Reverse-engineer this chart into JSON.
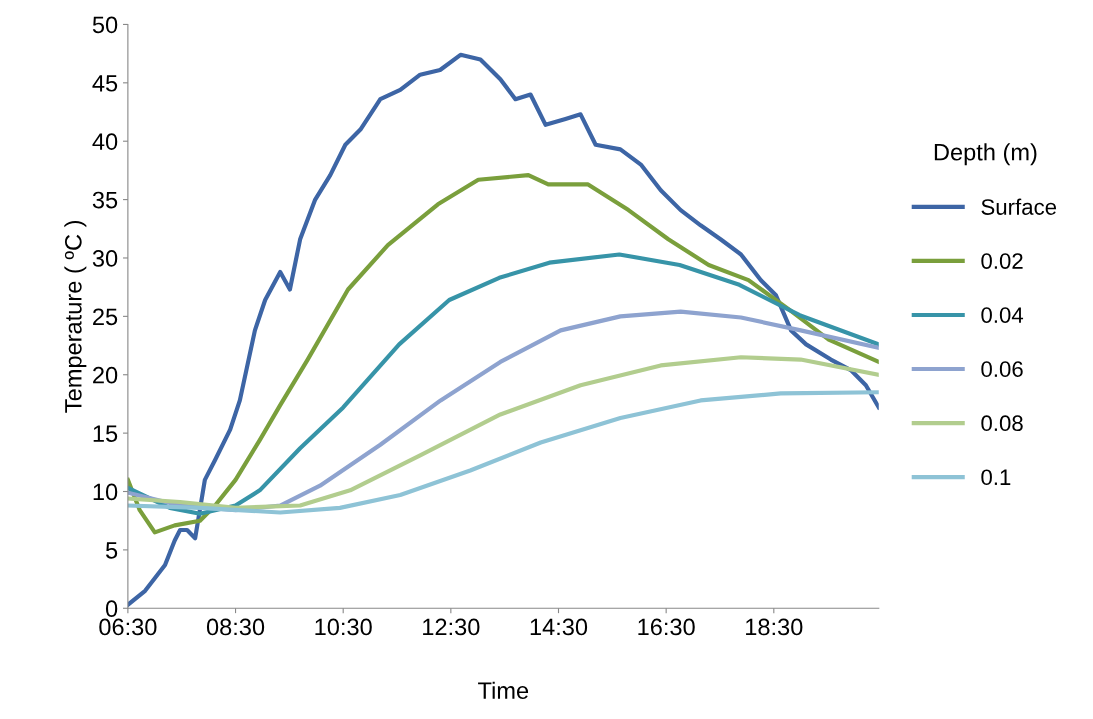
{
  "chart_data": {
    "type": "line",
    "xlabel": "Time",
    "ylabel": "Temperature ( ºC )",
    "legend_title": "Depth (m)",
    "legend": "right",
    "grid": false,
    "marker": "none",
    "line_style": "solid",
    "xlim": [
      6.5,
      20.45
    ],
    "xticks": [
      {
        "value": 6.5,
        "label": "06:30"
      },
      {
        "value": 8.5,
        "label": "08:30"
      },
      {
        "value": 10.5,
        "label": "10:30"
      },
      {
        "value": 12.5,
        "label": "12:30"
      },
      {
        "value": 14.5,
        "label": "14:30"
      },
      {
        "value": 16.5,
        "label": "16:30"
      },
      {
        "value": 18.5,
        "label": "18:30"
      }
    ],
    "ylim": [
      0,
      50
    ],
    "yticks": [
      0,
      5,
      10,
      15,
      20,
      25,
      30,
      35,
      40,
      45,
      50
    ],
    "series": [
      {
        "name": "Surface",
        "color": "#3d65a5",
        "x": [
          6.5,
          6.82,
          7.19,
          7.37,
          7.47,
          7.6,
          7.75,
          7.93,
          8.12,
          8.4,
          8.58,
          8.86,
          9.05,
          9.33,
          9.51,
          9.7,
          9.98,
          10.26,
          10.54,
          10.82,
          11.19,
          11.56,
          11.93,
          12.3,
          12.68,
          13.05,
          13.42,
          13.7,
          13.98,
          14.26,
          14.63,
          14.91,
          15.19,
          15.65,
          16.03,
          16.4,
          16.77,
          17.14,
          17.51,
          17.89,
          18.26,
          18.54,
          18.82,
          19.1,
          19.56,
          19.93,
          20.21,
          20.45
        ],
        "values": [
          0.3,
          1.5,
          3.7,
          5.8,
          6.7,
          6.7,
          6.0,
          11,
          12.7,
          15.3,
          17.8,
          23.8,
          26.4,
          28.8,
          27.3,
          31.6,
          35,
          37.1,
          39.7,
          41,
          43.6,
          44.4,
          45.7,
          46.1,
          47.4,
          47,
          45.3,
          43.6,
          44,
          41.4,
          41.9,
          42.3,
          39.7,
          39.3,
          38,
          35.8,
          34.1,
          32.8,
          31.6,
          30.3,
          28.1,
          26.8,
          23.8,
          22.6,
          21.3,
          20.4,
          19.1,
          17.2
        ]
      },
      {
        "name": "0.02",
        "color": "#7a9f3c",
        "x": [
          6.5,
          6.72,
          7.0,
          7.37,
          7.84,
          8.12,
          8.5,
          8.95,
          9.33,
          9.84,
          10.59,
          11.33,
          12.26,
          13.01,
          13.94,
          14.31,
          15.05,
          15.8,
          16.54,
          17.29,
          18.03,
          18.78,
          19.52,
          20.45
        ],
        "values": [
          11,
          8.4,
          6.5,
          7.1,
          7.5,
          8.8,
          11,
          14.4,
          17.4,
          21.3,
          27.3,
          31.1,
          34.6,
          36.7,
          37.1,
          36.3,
          36.3,
          34.1,
          31.6,
          29.4,
          28.1,
          25.6,
          23,
          21.1
        ]
      },
      {
        "name": "0.04",
        "color": "#3794a8",
        "x": [
          6.5,
          7.28,
          7.84,
          8.5,
          8.95,
          9.7,
          10.5,
          11.54,
          12.47,
          13.4,
          14.33,
          15.63,
          16.75,
          17.86,
          18.98,
          20.45
        ],
        "values": [
          10.3,
          8.6,
          8.1,
          8.8,
          10.1,
          13.7,
          17.2,
          22.6,
          26.4,
          28.3,
          29.6,
          30.3,
          29.4,
          27.7,
          25.1,
          22.6
        ]
      },
      {
        "name": "0.06",
        "color": "#8ea3cf",
        "x": [
          6.5,
          7.47,
          8.5,
          9.33,
          10.07,
          11.19,
          12.31,
          13.42,
          14.54,
          15.65,
          16.77,
          17.89,
          19.0,
          20.45
        ],
        "values": [
          9.9,
          8.8,
          8.4,
          8.8,
          10.5,
          14,
          17.8,
          21.1,
          23.8,
          25,
          25.4,
          24.9,
          23.8,
          22.3
        ]
      },
      {
        "name": "0.08",
        "color": "#b2cd8e",
        "x": [
          6.5,
          7.47,
          8.5,
          9.7,
          10.63,
          11.93,
          13.42,
          14.91,
          16.4,
          17.89,
          19.0,
          20.45
        ],
        "values": [
          9.4,
          9.1,
          8.6,
          8.8,
          10.1,
          13.1,
          16.6,
          19.1,
          20.8,
          21.5,
          21.3,
          20
        ]
      },
      {
        "name": "0.1",
        "color": "#8ec3d6",
        "x": [
          6.5,
          7.84,
          9.33,
          10.44,
          11.56,
          12.86,
          14.17,
          15.65,
          17.14,
          18.63,
          20.45
        ],
        "values": [
          8.8,
          8.6,
          8.2,
          8.6,
          9.7,
          11.8,
          14.2,
          16.3,
          17.8,
          18.4,
          18.5
        ]
      }
    ]
  }
}
